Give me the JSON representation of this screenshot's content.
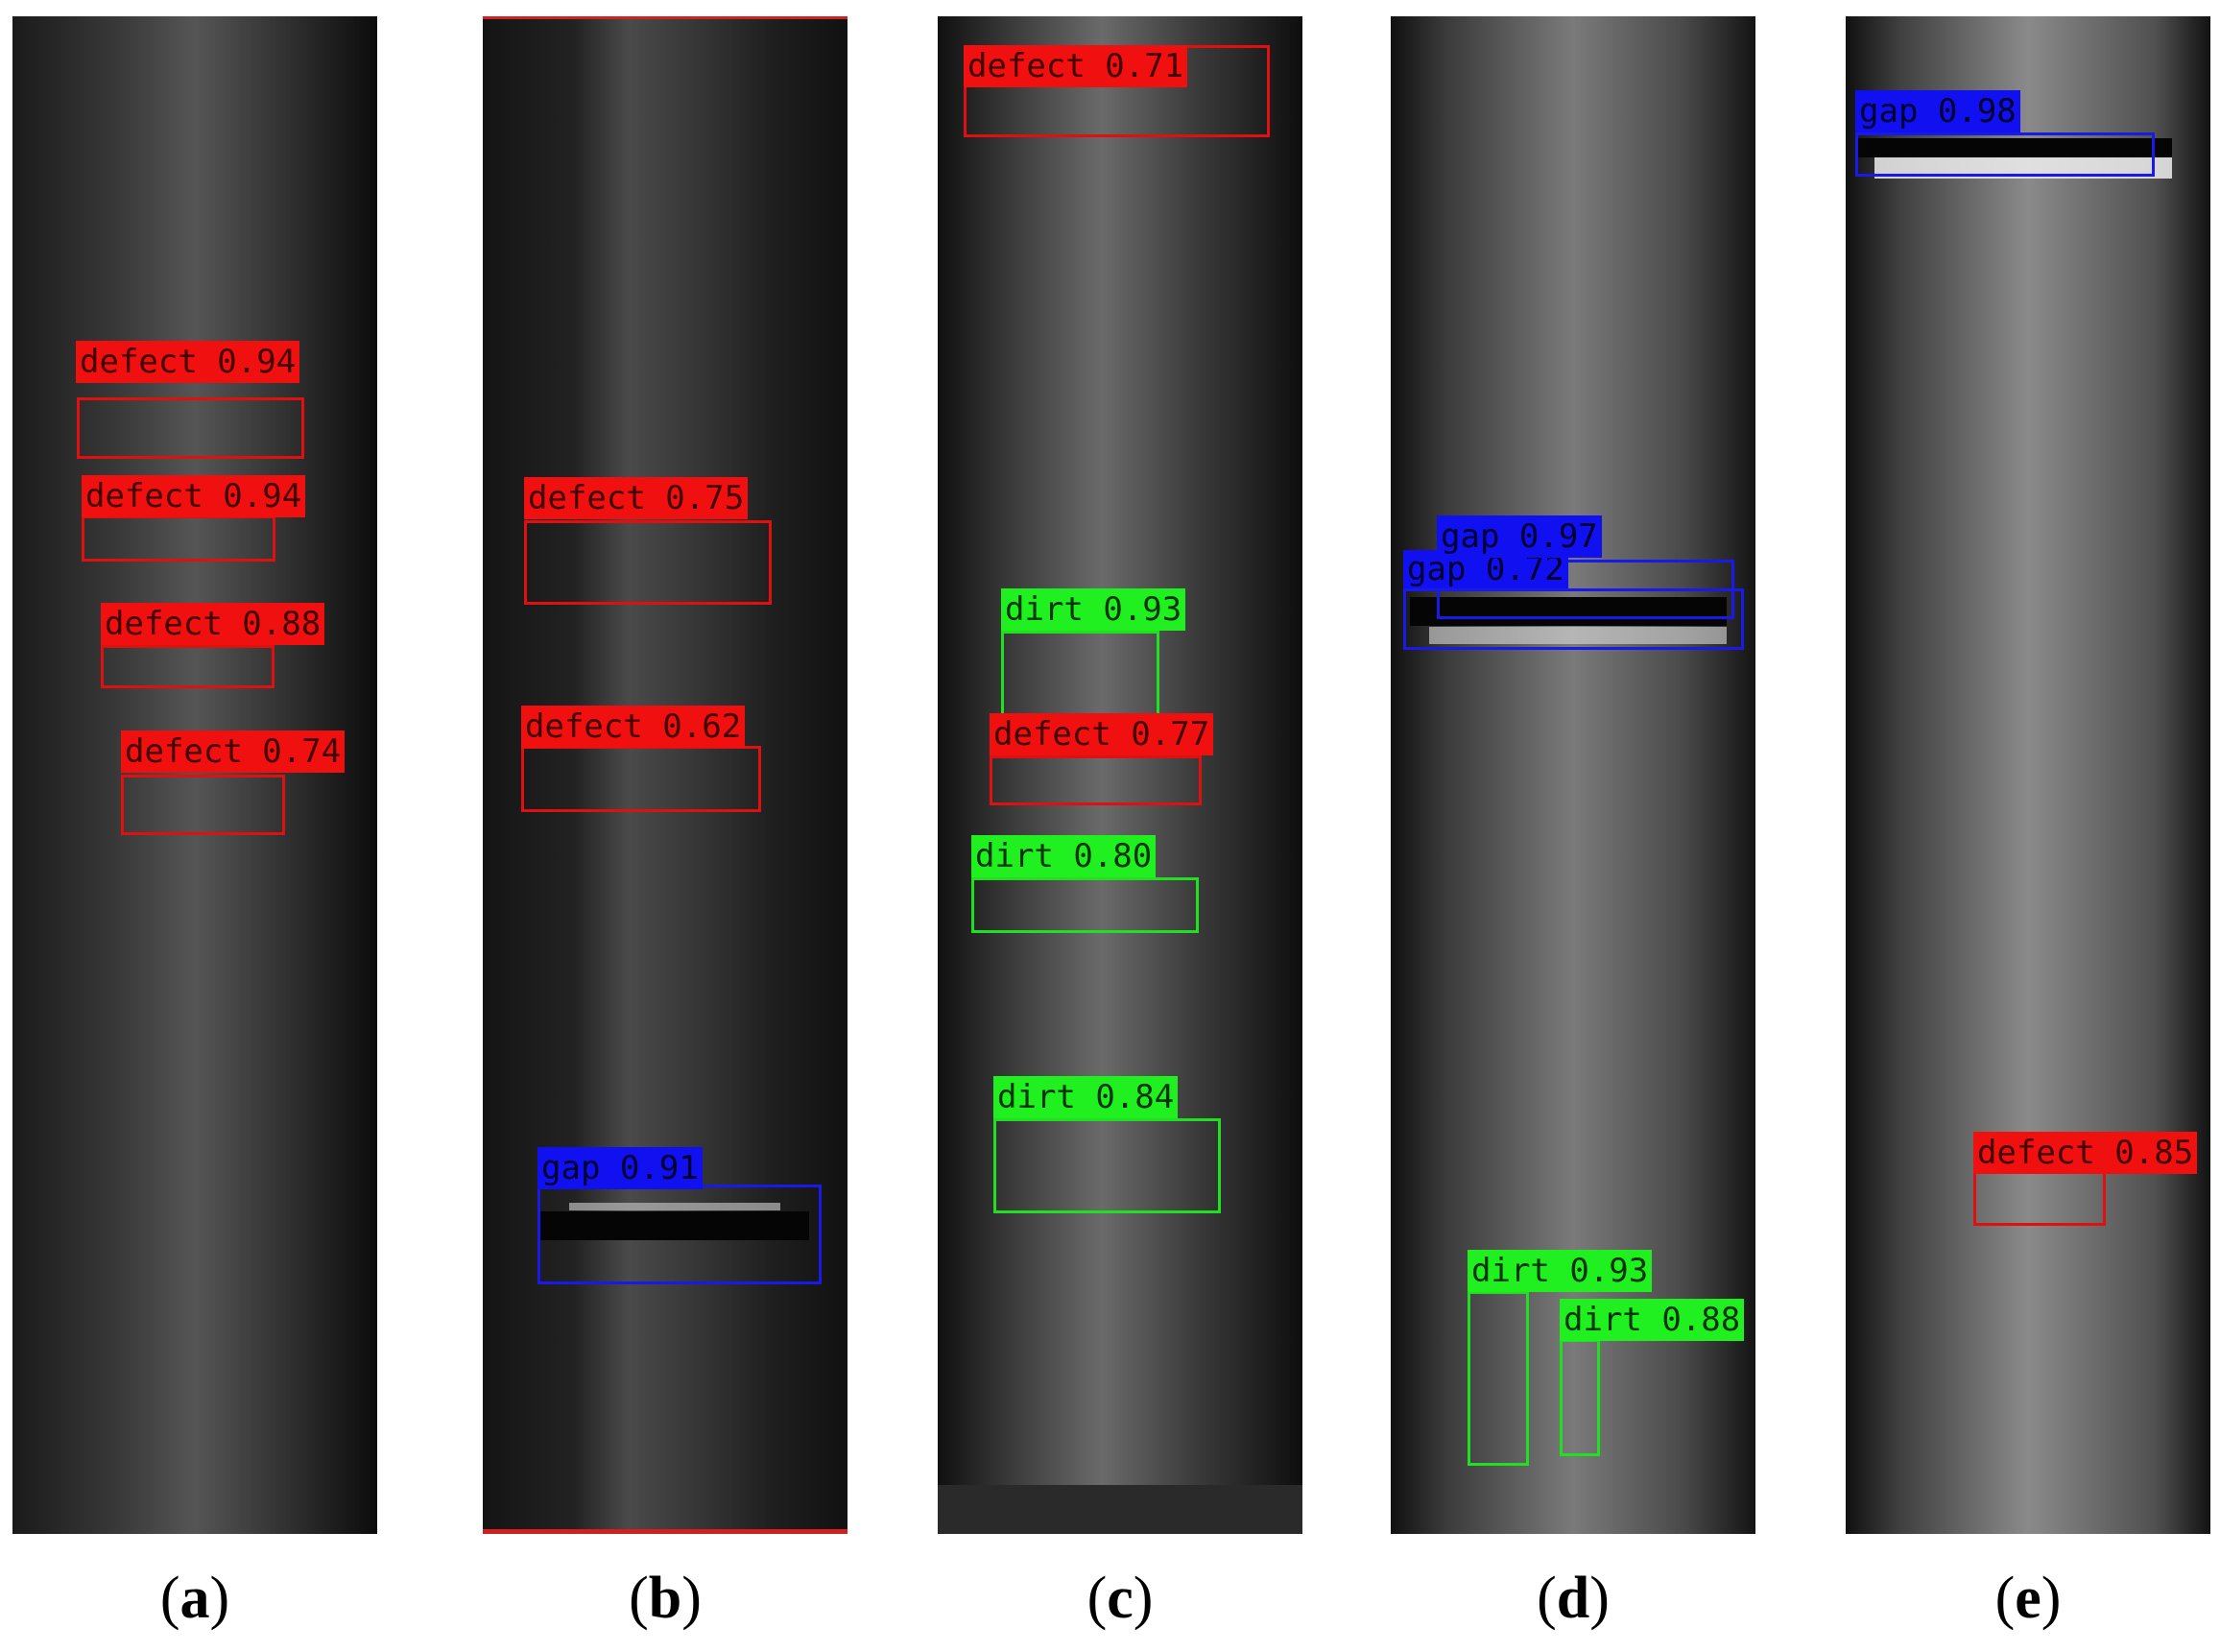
{
  "figure": {
    "panels": [
      {
        "id": "a",
        "caption_letter": "a",
        "detections": [
          {
            "label": "defect 0.94",
            "class": "defect"
          },
          {
            "label": "defect 0.94",
            "class": "defect"
          },
          {
            "label": "defect 0.88",
            "class": "defect"
          },
          {
            "label": "defect 0.74",
            "class": "defect"
          }
        ]
      },
      {
        "id": "b",
        "caption_letter": "b",
        "detections": [
          {
            "label": "defect 0.75",
            "class": "defect"
          },
          {
            "label": "defect 0.62",
            "class": "defect"
          },
          {
            "label": "gap 0.91",
            "class": "gap"
          }
        ]
      },
      {
        "id": "c",
        "caption_letter": "c",
        "detections": [
          {
            "label": "defect 0.71",
            "class": "defect"
          },
          {
            "label": "dirt 0.93",
            "class": "dirt"
          },
          {
            "label": "defect 0.77",
            "class": "defect"
          },
          {
            "label": "dirt 0.80",
            "class": "dirt"
          },
          {
            "label": "dirt 0.84",
            "class": "dirt"
          }
        ]
      },
      {
        "id": "d",
        "caption_letter": "d",
        "detections": [
          {
            "label": "gap 0.97",
            "class": "gap"
          },
          {
            "label": "gap 0.72",
            "class": "gap"
          },
          {
            "label": "dirt 0.93",
            "class": "dirt"
          },
          {
            "label": "dirt 0.88",
            "class": "dirt"
          }
        ]
      },
      {
        "id": "e",
        "caption_letter": "e",
        "detections": [
          {
            "label": "gap 0.98",
            "class": "gap"
          },
          {
            "label": "defect 0.85",
            "class": "defect"
          }
        ]
      }
    ],
    "colors": {
      "defect": "#f01010",
      "dirt": "#20f020",
      "gap": "#1010f0"
    }
  }
}
